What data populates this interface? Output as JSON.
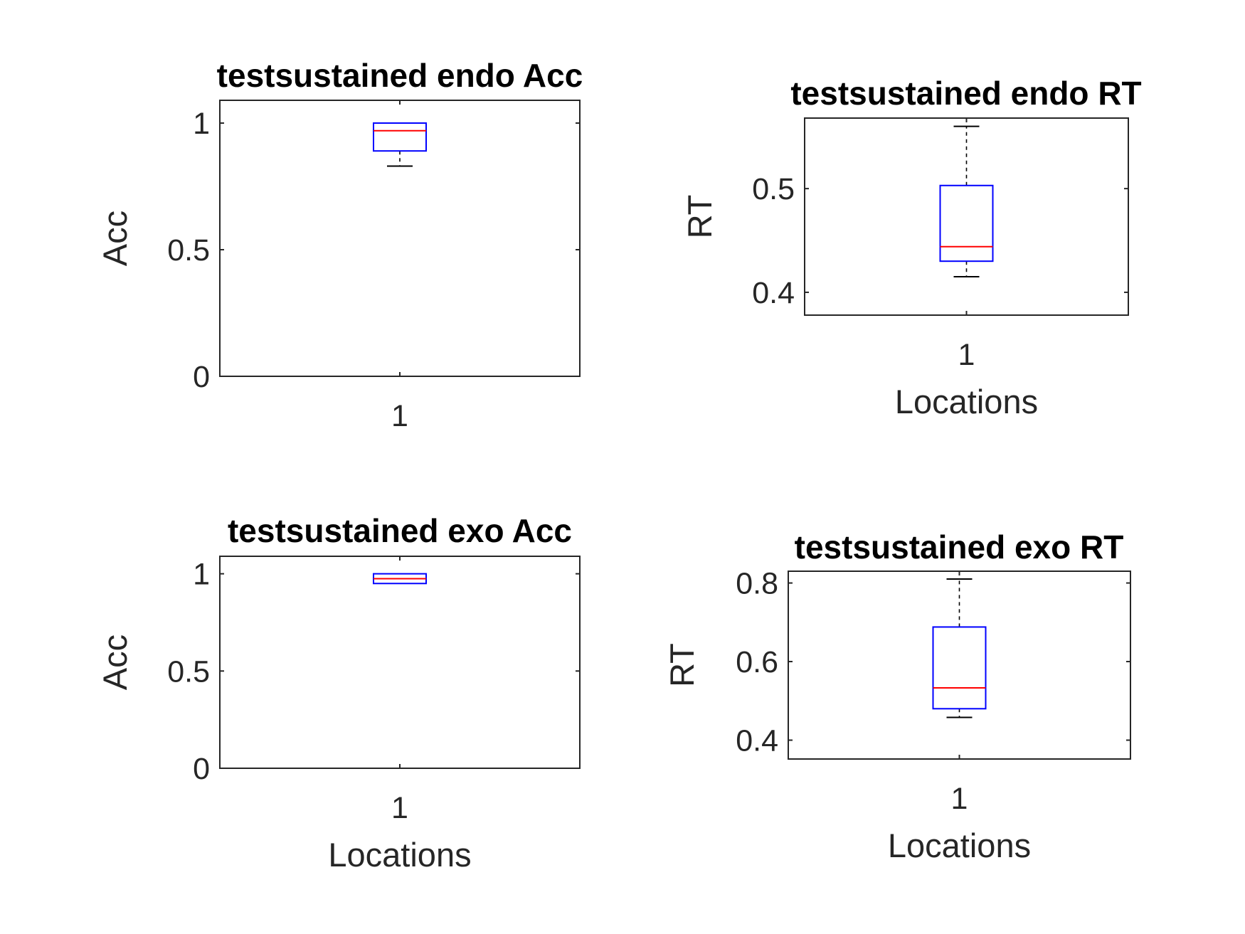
{
  "colors": {
    "axis": "#262626",
    "box": "#0000ff",
    "median": "#ff0000",
    "whisker": "#000000"
  },
  "chart_data": [
    {
      "type": "box",
      "title": "testsustained endo Acc",
      "xlabel": "",
      "ylabel": "Acc",
      "categories": [
        "1"
      ],
      "ylim": [
        0,
        1.09
      ],
      "yticks": [
        "0",
        "0.5",
        "1"
      ],
      "ytick_values": [
        0,
        0.5,
        1
      ],
      "boxes": [
        {
          "whisker_low": 0.83,
          "q1": 0.89,
          "median": 0.97,
          "q3": 1.0,
          "whisker_high": 1.0
        }
      ]
    },
    {
      "type": "box",
      "title": "testsustained endo RT",
      "xlabel": "Locations",
      "ylabel": "RT",
      "categories": [
        "1"
      ],
      "ylim": [
        0.378,
        0.568
      ],
      "yticks": [
        "0.4",
        "0.5"
      ],
      "ytick_values": [
        0.4,
        0.5
      ],
      "boxes": [
        {
          "whisker_low": 0.415,
          "q1": 0.43,
          "median": 0.444,
          "q3": 0.503,
          "whisker_high": 0.56
        }
      ]
    },
    {
      "type": "box",
      "title": "testsustained exo Acc",
      "xlabel": "Locations",
      "ylabel": "Acc",
      "categories": [
        "1"
      ],
      "ylim": [
        0,
        1.09
      ],
      "yticks": [
        "0",
        "0.5",
        "1"
      ],
      "ytick_values": [
        0,
        0.5,
        1
      ],
      "boxes": [
        {
          "whisker_low": 0.95,
          "q1": 0.95,
          "median": 0.975,
          "q3": 1.0,
          "whisker_high": 1.0
        }
      ]
    },
    {
      "type": "box",
      "title": "testsustained exo RT",
      "xlabel": "Locations",
      "ylabel": "RT",
      "categories": [
        "1"
      ],
      "ylim": [
        0.352,
        0.83
      ],
      "yticks": [
        "0.4",
        "0.6",
        "0.8"
      ],
      "ytick_values": [
        0.4,
        0.6,
        0.8
      ],
      "boxes": [
        {
          "whisker_low": 0.458,
          "q1": 0.48,
          "median": 0.533,
          "q3": 0.688,
          "whisker_high": 0.81
        }
      ]
    }
  ]
}
